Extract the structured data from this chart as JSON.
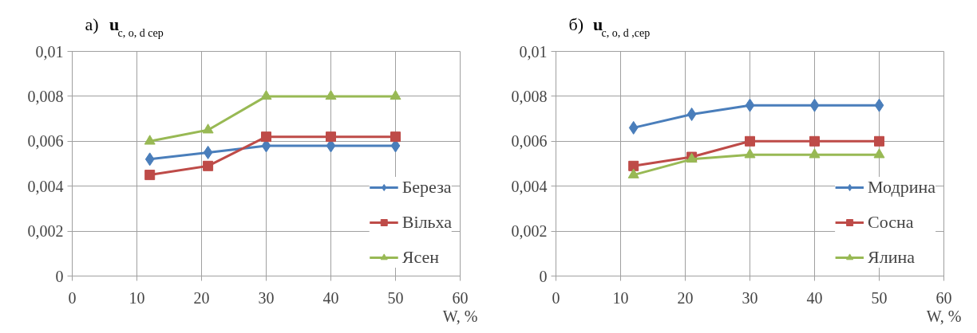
{
  "chart_data": [
    {
      "type": "line",
      "title": "а)",
      "ylabel": "u$_{c, o, d сер}$",
      "xlabel": "W, %",
      "x": [
        12,
        21,
        30,
        40,
        50
      ],
      "series": [
        {
          "name": "Береза",
          "color": "#4a7ebb",
          "marker": "diamond",
          "values": [
            0.0052,
            0.0055,
            0.0058,
            0.0058,
            0.0058
          ]
        },
        {
          "name": "Вільха",
          "color": "#be4b48",
          "marker": "square",
          "values": [
            0.0045,
            0.0049,
            0.0062,
            0.0062,
            0.0062
          ]
        },
        {
          "name": "Ясен",
          "color": "#98b954",
          "marker": "triangle",
          "values": [
            0.006,
            0.0065,
            0.008,
            0.008,
            0.008
          ]
        }
      ],
      "xlim": [
        0,
        60
      ],
      "xticks": [
        0,
        10,
        20,
        30,
        40,
        50,
        60
      ],
      "ylim": [
        0,
        0.01
      ],
      "yticks": [
        {
          "value": 0,
          "label": "0"
        },
        {
          "value": 0.002,
          "label": "0,002"
        },
        {
          "value": 0.004,
          "label": "0,004"
        },
        {
          "value": 0.006,
          "label": "0,006"
        },
        {
          "value": 0.008,
          "label": "0,008"
        },
        {
          "value": 0.01,
          "label": "0,01"
        }
      ],
      "grid": true,
      "legend": "bottom right"
    },
    {
      "type": "line",
      "title": "б)",
      "ylabel": "u$_{c, o, d ,сер}$",
      "xlabel": "W, %",
      "x": [
        12,
        21,
        30,
        40,
        50
      ],
      "series": [
        {
          "name": "Модрина",
          "color": "#4a7ebb",
          "marker": "diamond",
          "values": [
            0.0066,
            0.0072,
            0.0076,
            0.0076,
            0.0076
          ]
        },
        {
          "name": "Сосна",
          "color": "#be4b48",
          "marker": "square",
          "values": [
            0.0049,
            0.0053,
            0.006,
            0.006,
            0.006
          ]
        },
        {
          "name": "Ялина",
          "color": "#98b954",
          "marker": "triangle",
          "values": [
            0.0045,
            0.0052,
            0.0054,
            0.0054,
            0.0054
          ]
        }
      ],
      "xlim": [
        0,
        60
      ],
      "xticks": [
        0,
        10,
        20,
        30,
        40,
        50,
        60
      ],
      "ylim": [
        0,
        0.01
      ],
      "yticks": [
        {
          "value": 0,
          "label": "0"
        },
        {
          "value": 0.002,
          "label": "0,002"
        },
        {
          "value": 0.004,
          "label": "0,004"
        },
        {
          "value": 0.006,
          "label": "0,006"
        },
        {
          "value": 0.008,
          "label": "0,008"
        },
        {
          "value": 0.01,
          "label": "0,01"
        }
      ],
      "grid": true,
      "legend": "bottom right"
    }
  ]
}
